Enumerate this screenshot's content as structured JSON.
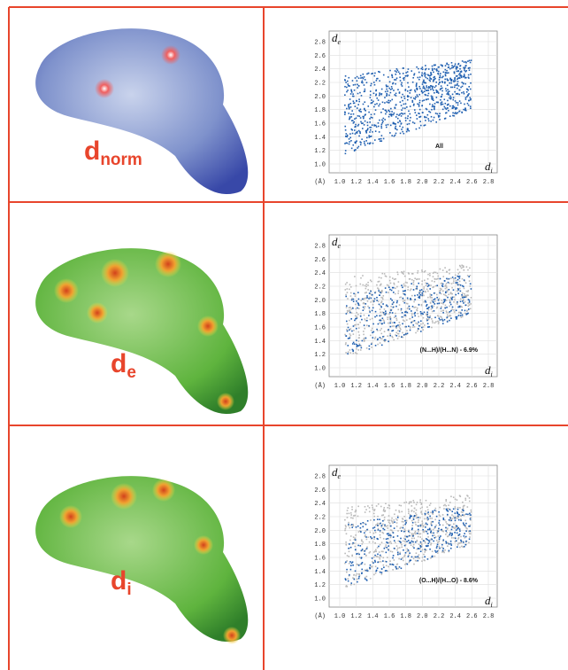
{
  "panels": [
    {
      "surface_label": {
        "symbol": "d",
        "subscript": "norm"
      },
      "plot": {
        "y_label": {
          "symbol": "d",
          "subscript": "e"
        },
        "x_label": {
          "symbol": "d",
          "subscript": "i"
        },
        "unit": "(Å)",
        "ticks": [
          "1.0",
          "1.2",
          "1.4",
          "1.6",
          "1.8",
          "2.0",
          "2.2",
          "2.4",
          "2.6",
          "2.8"
        ],
        "annotation": "All"
      }
    },
    {
      "surface_label": {
        "symbol": "d",
        "subscript": "e"
      },
      "plot": {
        "y_label": {
          "symbol": "d",
          "subscript": "e"
        },
        "x_label": {
          "symbol": "d",
          "subscript": "i"
        },
        "unit": "(Å)",
        "ticks": [
          "1.0",
          "1.2",
          "1.4",
          "1.6",
          "1.8",
          "2.0",
          "2.2",
          "2.4",
          "2.6",
          "2.8"
        ],
        "annotation": "(N...H)/(H...N) - 6.9%"
      }
    },
    {
      "surface_label": {
        "symbol": "d",
        "subscript": "i"
      },
      "plot": {
        "y_label": {
          "symbol": "d",
          "subscript": "e"
        },
        "x_label": {
          "symbol": "d",
          "subscript": "i"
        },
        "unit": "(Å)",
        "ticks": [
          "1.0",
          "1.2",
          "1.4",
          "1.6",
          "1.8",
          "2.0",
          "2.2",
          "2.4",
          "2.6",
          "2.8"
        ],
        "annotation": "(O...H)/(H...O) - 8.6%"
      }
    }
  ]
}
